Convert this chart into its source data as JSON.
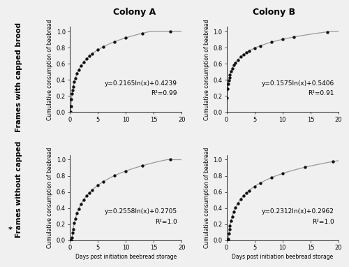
{
  "col_titles": [
    "Colony A",
    "Colony B"
  ],
  "row_labels": [
    "Frames with capped brood",
    "Frames without capped\n*"
  ],
  "panels": [
    {
      "a": 0.2165,
      "b": 0.4239,
      "r2": "0.99",
      "eq": "y=0.2165ln(x)+0.4239",
      "xmax": 20,
      "ymax": 1.0,
      "data_x": [
        0.1,
        0.2,
        0.3,
        0.4,
        0.5,
        0.6,
        0.8,
        1.0,
        1.3,
        1.6,
        2.0,
        2.5,
        3.0,
        3.5,
        4.0,
        5.0,
        6.0,
        8.0,
        10.0,
        13.0,
        18.0
      ]
    },
    {
      "a": 0.1575,
      "b": 0.5406,
      "r2": "0.91",
      "eq": "y=0.1575ln(x)+0.5406",
      "xmax": 20,
      "ymax": 1.0,
      "data_x": [
        0.1,
        0.2,
        0.3,
        0.4,
        0.5,
        0.6,
        0.8,
        1.0,
        1.3,
        1.6,
        2.0,
        2.5,
        3.0,
        3.5,
        4.0,
        5.0,
        6.0,
        8.0,
        10.0,
        12.0,
        18.0
      ]
    },
    {
      "a": 0.2558,
      "b": 0.2705,
      "r2": "1.0",
      "eq": "y=0.2558ln(x)+0.2705",
      "xmax": 20,
      "ymax": 1.0,
      "data_x": [
        0.1,
        0.2,
        0.3,
        0.4,
        0.5,
        0.6,
        0.8,
        1.0,
        1.3,
        1.6,
        2.0,
        2.5,
        3.0,
        3.5,
        4.0,
        5.0,
        6.0,
        8.0,
        10.0,
        13.0,
        18.0
      ]
    },
    {
      "a": 0.2312,
      "b": 0.2962,
      "r2": "1.0",
      "eq": "y=0.2312ln(x)+0.2962",
      "xmax": 20,
      "ymax": 1.0,
      "data_x": [
        0.1,
        0.2,
        0.3,
        0.4,
        0.5,
        0.6,
        0.8,
        1.0,
        1.3,
        1.6,
        2.0,
        2.5,
        3.0,
        3.5,
        4.0,
        5.0,
        6.0,
        8.0,
        10.0,
        14.0,
        19.0
      ]
    }
  ],
  "xlabel": "Days post initiation beebread storage",
  "ylabel": "Cumulative consumption of beebread",
  "dot_color": "#111111",
  "line_color": "#999999",
  "bg_color": "#f0f0f0",
  "title_fontsize": 9,
  "label_fontsize": 5.5,
  "tick_fontsize": 6,
  "annot_fontsize": 6.5,
  "row_label_fontsize": 7.5
}
